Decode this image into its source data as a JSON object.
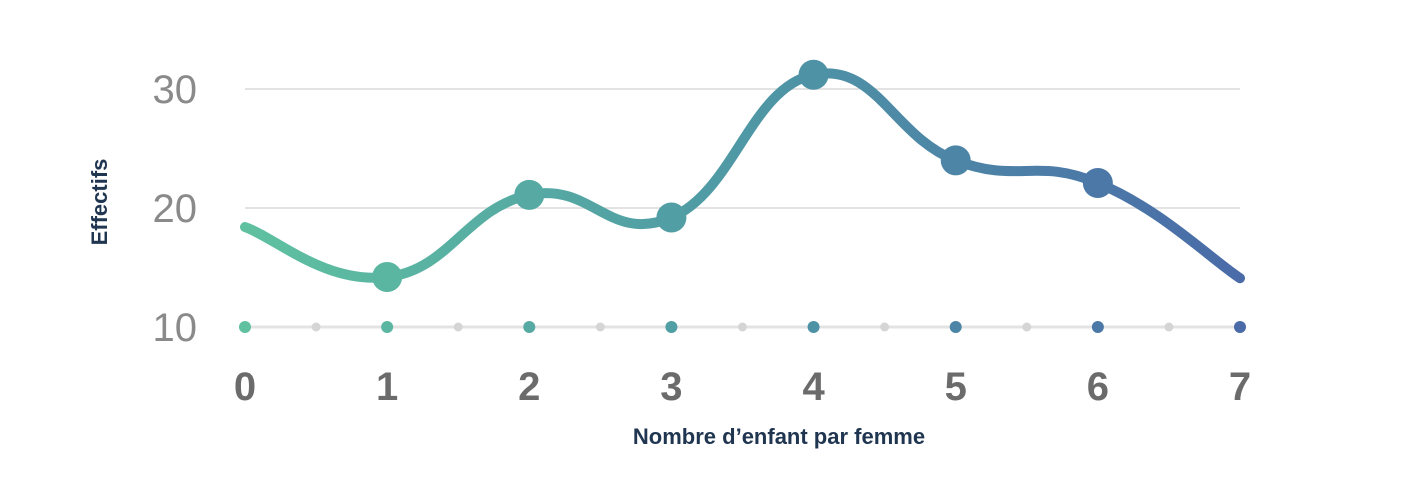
{
  "chart_data": {
    "type": "line",
    "title": "",
    "xlabel": "Nombre d’enfant par femme",
    "ylabel": "Effectifs",
    "x": [
      0,
      1,
      2,
      3,
      4,
      5,
      6,
      7
    ],
    "x_tick_labels": [
      "0",
      "1",
      "2",
      "3",
      "4",
      "5",
      "6",
      "7"
    ],
    "y_ticks": [
      10,
      20,
      30
    ],
    "y_tick_labels": [
      "10",
      "20",
      "30"
    ],
    "ylim": [
      10,
      30
    ],
    "grid": true,
    "series": [
      {
        "name": "Effectifs",
        "values": [
          18.4,
          14.2,
          21.1,
          19.2,
          31.2,
          24.0,
          22.1,
          14.1
        ],
        "marked_points": [
          1,
          2,
          3,
          4,
          5,
          6
        ]
      }
    ],
    "colors": {
      "gradient": [
        "#5fc1a0",
        "#4f98a5",
        "#4a6ba8"
      ],
      "grid": "#e3e3e3",
      "baseline_dot": "#d5d5d5"
    }
  }
}
